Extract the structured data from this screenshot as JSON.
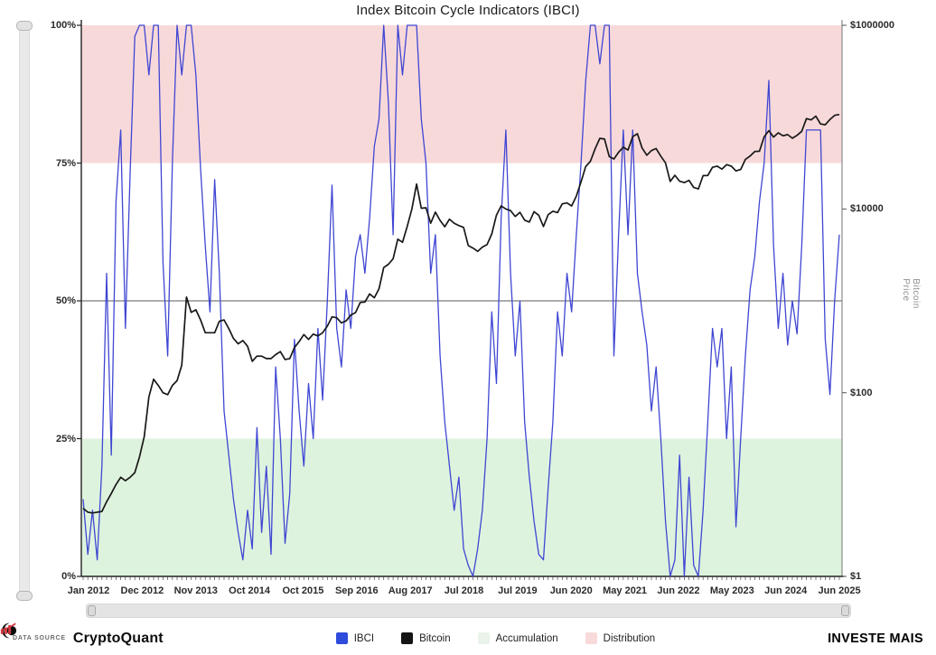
{
  "title": "Index Bitcoin Cycle Indicators (IBCI)",
  "y_left": {
    "title": "IBCI",
    "ticks": [
      "100%",
      "75%",
      "50%",
      "25%",
      "0%"
    ],
    "percents": [
      100,
      75,
      50,
      25,
      0
    ]
  },
  "y_right": {
    "title": "Bitcoin Price",
    "ticks": [
      "$1000000",
      "$10000",
      "$100",
      "$1"
    ],
    "values": [
      1000000,
      10000,
      100,
      1
    ]
  },
  "x_ticks": [
    "Jan 2012",
    "Dec 2012",
    "Nov 2013",
    "Oct 2014",
    "Oct 2015",
    "Sep 2016",
    "Aug 2017",
    "Jul 2018",
    "Jul 2019",
    "Jun 2020",
    "May 2021",
    "Jun 2022",
    "May 2023",
    "Jun 2024",
    "Jun 2025"
  ],
  "legend": {
    "items": [
      {
        "label": "IBCI",
        "color": "#2e4bdb"
      },
      {
        "label": "Bitcoin",
        "color": "#141414"
      },
      {
        "label": "Accumulation",
        "color": "#e9f3e9"
      },
      {
        "label": "Distribution",
        "color": "#f8dadb"
      }
    ]
  },
  "footer": {
    "data_source_label": "DATA SOURCE",
    "brand": "CryptoQuant",
    "watermark": "INVESTE MAIS",
    "watermark_color": "#d2363e"
  },
  "chart_data": {
    "type": "line",
    "title": "Index Bitcoin Cycle Indicators (IBCI)",
    "x_start": "2012-01",
    "x_end": "2025-06",
    "x_step": "month",
    "grid": false,
    "legend_position": "bottom",
    "y_left_axis": {
      "label": "IBCI",
      "range": [
        0,
        100
      ],
      "unit": "%"
    },
    "y_right_axis": {
      "label": "Bitcoin Price",
      "range": [
        1,
        1000000
      ],
      "scale": "log"
    },
    "midline_pct": 50,
    "bands": [
      {
        "name": "Distribution",
        "range_pct": [
          75,
          100
        ],
        "color": "#f8d9da"
      },
      {
        "name": "Accumulation",
        "range_pct": [
          0,
          25
        ],
        "color": "#def3de"
      }
    ],
    "series": [
      {
        "name": "IBCI",
        "axis": "left",
        "unit": "%",
        "color": "#3f46d2",
        "values": [
          14,
          4,
          12,
          3,
          20,
          55,
          22,
          68,
          81,
          45,
          73,
          98,
          100,
          100,
          91,
          100,
          100,
          57,
          40,
          75,
          100,
          91,
          100,
          100,
          91,
          74,
          60,
          48,
          72,
          55,
          30,
          22,
          14,
          8,
          3,
          12,
          5,
          27,
          8,
          20,
          4,
          38,
          25,
          6,
          15,
          43,
          30,
          20,
          35,
          25,
          45,
          32,
          50,
          71,
          45,
          38,
          52,
          45,
          58,
          62,
          55,
          65,
          78,
          83,
          100,
          86,
          62,
          100,
          91,
          100,
          100,
          100,
          83,
          75,
          55,
          62,
          40,
          28,
          20,
          12,
          18,
          5,
          2,
          0,
          5,
          12,
          25,
          48,
          35,
          65,
          81,
          55,
          40,
          50,
          28,
          18,
          10,
          4,
          3,
          16,
          28,
          48,
          40,
          55,
          48,
          62,
          75,
          90,
          100,
          100,
          93,
          100,
          100,
          40,
          62,
          81,
          62,
          81,
          55,
          48,
          42,
          30,
          38,
          25,
          10,
          0,
          3,
          22,
          0,
          18,
          2,
          0,
          12,
          28,
          45,
          38,
          45,
          25,
          38,
          9,
          25,
          40,
          52,
          58,
          68,
          75,
          90,
          60,
          45,
          55,
          42,
          50,
          44,
          60,
          81,
          81,
          81,
          81,
          43,
          33,
          50,
          62
        ]
      },
      {
        "name": "Bitcoin",
        "axis": "right",
        "unit": "USD",
        "color": "#181818",
        "values": [
          5.5,
          5,
          4.9,
          5,
          5.1,
          6.5,
          8,
          10,
          12,
          11,
          12,
          13.5,
          20,
          33,
          90,
          140,
          120,
          100,
          95,
          120,
          135,
          200,
          1100,
          750,
          800,
          620,
          450,
          450,
          450,
          600,
          620,
          500,
          390,
          340,
          370,
          320,
          220,
          250,
          250,
          235,
          235,
          260,
          280,
          230,
          235,
          310,
          360,
          430,
          380,
          435,
          415,
          450,
          530,
          670,
          655,
          575,
          605,
          700,
          745,
          960,
          970,
          1190,
          1080,
          1350,
          2300,
          2500,
          2875,
          4700,
          4340,
          6450,
          10000,
          18700,
          10200,
          10300,
          7000,
          9250,
          7500,
          6400,
          7750,
          7000,
          6600,
          6300,
          4000,
          3750,
          3460,
          3850,
          4100,
          5350,
          8580,
          10800,
          10000,
          9600,
          8300,
          9200,
          7550,
          7200,
          9350,
          8550,
          6450,
          8650,
          9450,
          9140,
          11350,
          11650,
          10780,
          13800,
          19700,
          29000,
          33100,
          45200,
          58800,
          57750,
          37300,
          35000,
          41500,
          47150,
          43800,
          61300,
          66000,
          46200,
          38500,
          43200,
          45550,
          37650,
          31800,
          19950,
          23300,
          20050,
          19400,
          20500,
          17150,
          16550,
          23100,
          23150,
          28450,
          29250,
          27200,
          30450,
          29250,
          25950,
          26950,
          34650,
          37700,
          42250,
          42550,
          61150,
          71300,
          60650,
          67500,
          62650,
          64600,
          58950,
          63350,
          70200,
          96400,
          93400,
          102400,
          84350,
          82550,
          94200,
          104600,
          107000
        ]
      }
    ]
  }
}
